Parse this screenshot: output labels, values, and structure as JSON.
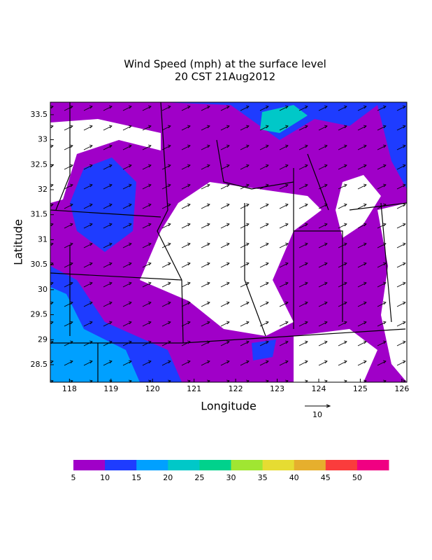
{
  "map": {
    "title": "Wind Speed (mph) at the surface level",
    "subtitle": "20 CST 21Aug2012",
    "xlabel": "Longitude",
    "ylabel": "Latitude",
    "xlim": [
      117.54,
      126.12
    ],
    "ylim": [
      28.15,
      33.75
    ],
    "xticks": [
      118,
      119,
      120,
      121,
      122,
      123,
      124,
      125,
      126
    ],
    "yticks": [
      28.5,
      29,
      29.5,
      30,
      30.5,
      31,
      31.5,
      32,
      32.5,
      33,
      33.5
    ],
    "vector_reference": "10",
    "colorbar": {
      "levels": [
        5,
        10,
        15,
        20,
        25,
        30,
        35,
        40,
        45,
        50
      ],
      "colors": [
        "#a000c8",
        "#1e3cff",
        "#00a0ff",
        "#00c8c8",
        "#00d28c",
        "#a0e632",
        "#e6dc32",
        "#e6af2d",
        "#fa3c3c",
        "#f00082"
      ]
    }
  }
}
